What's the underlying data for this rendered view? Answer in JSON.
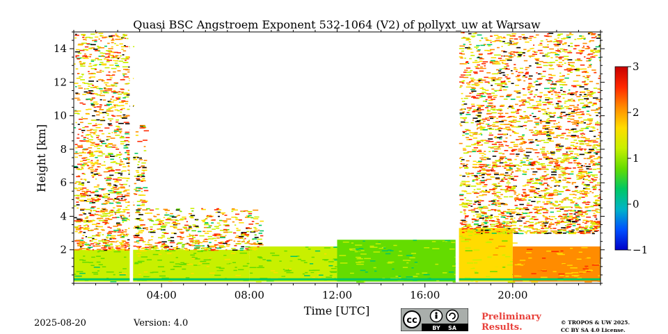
{
  "chart_data": {
    "type": "heatmap",
    "title": "Quasi BSC Angstroem Exponent 532-1064 (V2) of pollyxt_uw at Warsaw",
    "xlabel": "Time [UTC]",
    "ylabel": "Height [km]",
    "xlim_hours": [
      0,
      24
    ],
    "ylim_km": [
      0,
      15
    ],
    "x_ticks": [
      "04:00",
      "08:00",
      "12:00",
      "16:00",
      "20:00"
    ],
    "x_tick_hours": [
      4,
      8,
      12,
      16,
      20
    ],
    "y_ticks": [
      2,
      4,
      6,
      8,
      10,
      12,
      14
    ],
    "colorbar": {
      "colormap": "jet-like",
      "range": [
        -1,
        3
      ],
      "ticks": [
        -1,
        0,
        1,
        2,
        3
      ],
      "tick_labels": [
        "−1",
        "0",
        "1",
        "2",
        "3"
      ]
    },
    "data_gaps_hours": [
      [
        2.55,
        2.7
      ],
      [
        17.4,
        17.55
      ]
    ],
    "layers": [
      {
        "start_h": 0,
        "end_h": 2.55,
        "base_km": 0.1,
        "top_km": 2.0,
        "value": 1.0
      },
      {
        "start_h": 2.7,
        "end_h": 8,
        "base_km": 0.1,
        "top_km": 2.0,
        "value": 1.1
      },
      {
        "start_h": 8,
        "end_h": 12,
        "base_km": 0.1,
        "top_km": 2.2,
        "value": 1.0
      },
      {
        "start_h": 12,
        "end_h": 17.4,
        "base_km": 0.1,
        "top_km": 2.6,
        "value": 0.9
      },
      {
        "start_h": 17.55,
        "end_h": 20,
        "base_km": 0.1,
        "top_km": 3.3,
        "value": 1.4
      },
      {
        "start_h": 20,
        "end_h": 24,
        "base_km": 0.1,
        "top_km": 2.2,
        "value": 1.9
      }
    ],
    "noise_regions": [
      {
        "start_h": 0,
        "end_h": 2.55,
        "base_km": 2.0,
        "top_km": 15,
        "value": 1.8
      },
      {
        "start_h": 2.7,
        "end_h": 3.2,
        "base_km": 2.0,
        "top_km": 9.5,
        "value": 1.7
      },
      {
        "start_h": 3.2,
        "end_h": 8.5,
        "base_km": 2.0,
        "top_km": 4.5,
        "value": 1.7
      },
      {
        "start_h": 17.55,
        "end_h": 24,
        "base_km": 3.0,
        "top_km": 15,
        "value": 1.8
      }
    ]
  },
  "footer": {
    "date": "2025-08-20",
    "version": "Version: 4.0",
    "preliminary_line1": "Preliminary",
    "preliminary_line2": "Results.",
    "copyright_line1": "© TROPOS & UW 2025.",
    "copyright_line2": "CC BY SA 4.0 License.",
    "cc_badge_labels": [
      "cc",
      "BY",
      "SA"
    ]
  },
  "colors": {
    "cmap": [
      "#0000c8",
      "#0050ff",
      "#00b4c8",
      "#00c864",
      "#64dc00",
      "#c8f000",
      "#ffdc00",
      "#ff8c00",
      "#ff2800",
      "#c80000"
    ],
    "preliminary": "#e8403a"
  }
}
